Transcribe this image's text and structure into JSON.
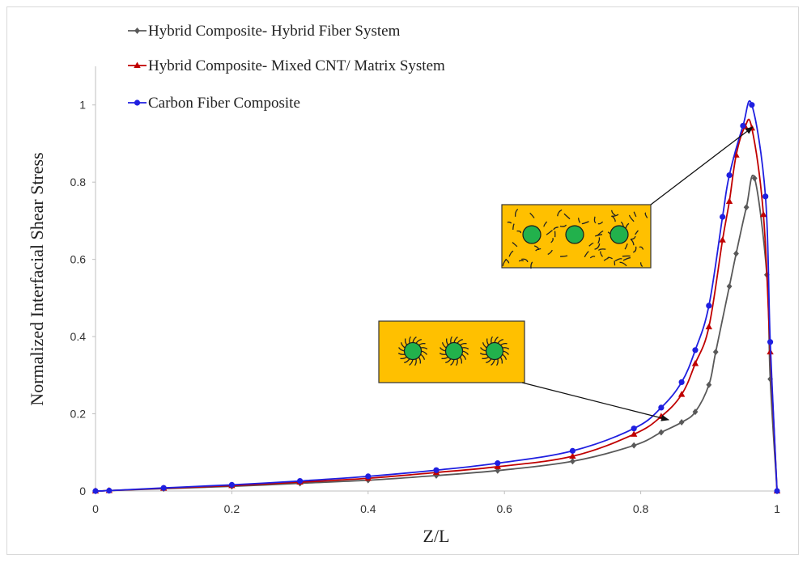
{
  "chart_data": {
    "type": "line",
    "xlabel": "Z/L",
    "ylabel": "Normalized Interfacial Shear Stress",
    "xlim": [
      0,
      1
    ],
    "ylim": [
      0,
      1.1
    ],
    "x_ticks": [
      "0",
      "0.2",
      "0.4",
      "0.6",
      "0.8",
      "1"
    ],
    "y_ticks": [
      "0",
      "0.2",
      "0.4",
      "0.6",
      "0.8",
      "1"
    ],
    "grid": false,
    "legend_position": "top-left",
    "series": [
      {
        "name": "Hybrid Composite- Hybrid Fiber System",
        "color": "#595959",
        "marker": "diamond",
        "x": [
          0,
          0.02,
          0.1,
          0.2,
          0.3,
          0.4,
          0.5,
          0.59,
          0.7,
          0.79,
          0.83,
          0.86,
          0.88,
          0.9,
          0.91,
          0.93,
          0.94,
          0.955,
          0.967,
          0.985,
          0.99,
          1.0
        ],
        "y": [
          0,
          0.001,
          0.006,
          0.012,
          0.02,
          0.028,
          0.04,
          0.053,
          0.077,
          0.118,
          0.152,
          0.178,
          0.205,
          0.275,
          0.36,
          0.53,
          0.615,
          0.735,
          0.81,
          0.56,
          0.29,
          0
        ]
      },
      {
        "name": "Hybrid Composite- Mixed CNT/ Matrix System",
        "color": "#c00000",
        "marker": "triangle",
        "x": [
          0,
          0.02,
          0.1,
          0.2,
          0.3,
          0.4,
          0.5,
          0.59,
          0.7,
          0.79,
          0.83,
          0.86,
          0.88,
          0.9,
          0.92,
          0.93,
          0.94,
          0.953,
          0.963,
          0.98,
          0.99,
          1.0
        ],
        "y": [
          0,
          0.001,
          0.007,
          0.014,
          0.023,
          0.033,
          0.048,
          0.063,
          0.09,
          0.147,
          0.193,
          0.25,
          0.33,
          0.425,
          0.65,
          0.75,
          0.87,
          0.944,
          0.94,
          0.716,
          0.36,
          0
        ]
      },
      {
        "name": "Carbon Fiber Composite",
        "color": "#1f1fe0",
        "marker": "circle",
        "x": [
          0,
          0.02,
          0.1,
          0.2,
          0.3,
          0.4,
          0.5,
          0.59,
          0.7,
          0.79,
          0.83,
          0.86,
          0.88,
          0.9,
          0.92,
          0.93,
          0.95,
          0.963,
          0.983,
          0.99,
          1.0
        ],
        "y": [
          0,
          0.001,
          0.008,
          0.016,
          0.026,
          0.038,
          0.054,
          0.072,
          0.104,
          0.162,
          0.216,
          0.282,
          0.365,
          0.48,
          0.71,
          0.818,
          0.946,
          1.0,
          0.763,
          0.386,
          0
        ]
      }
    ]
  }
}
